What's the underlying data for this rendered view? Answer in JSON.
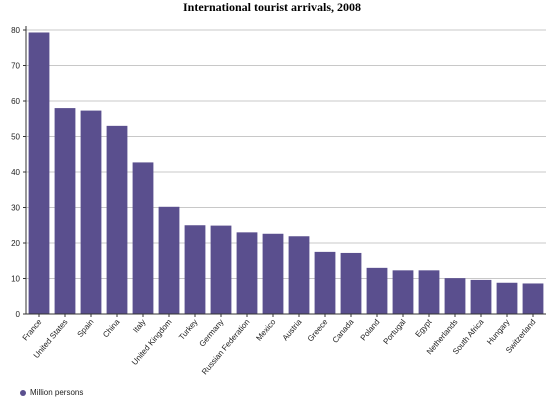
{
  "chart_data": {
    "type": "bar",
    "title": "International tourist arrivals, 2008",
    "categories": [
      "France",
      "United States",
      "Spain",
      "China",
      "Italy",
      "United Kingdom",
      "Turkey",
      "Germany",
      "Russian Federation",
      "Mexico",
      "Austria",
      "Greece",
      "Canada",
      "Poland",
      "Portugal",
      "Egypt",
      "Netherlands",
      "South Africa",
      "Hungary",
      "Switzerland"
    ],
    "series": [
      {
        "name": "Million persons",
        "values": [
          79.3,
          58.0,
          57.3,
          53.0,
          42.7,
          30.2,
          25.0,
          24.9,
          23.0,
          22.6,
          21.9,
          17.5,
          17.2,
          13.0,
          12.3,
          12.3,
          10.1,
          9.6,
          8.8,
          8.6
        ]
      }
    ],
    "ylim": [
      0,
      80
    ],
    "yticks": [
      0,
      10,
      20,
      30,
      40,
      50,
      60,
      70,
      80
    ],
    "grid": true,
    "legend": "bottom-left",
    "colors": {
      "bar": "#5a4f8e",
      "grid": "#c8c8c8",
      "axis": "#333333"
    }
  }
}
